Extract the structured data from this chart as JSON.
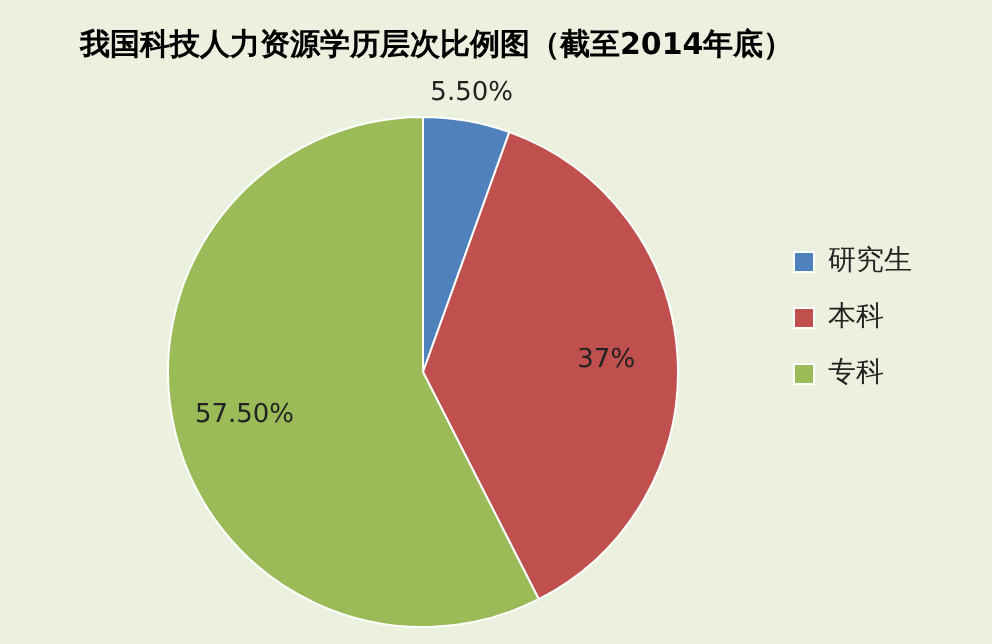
{
  "chart_data": {
    "type": "pie",
    "title": "我国科技人力资源学历层次比例图（截至2014年底）",
    "categories": [
      "研究生",
      "本科",
      "专科"
    ],
    "values": [
      5.5,
      37,
      57.5
    ],
    "colors": [
      "#4f81bd",
      "#c0504d",
      "#9bbb59"
    ],
    "value_labels": [
      "5.50%",
      "37%",
      "57.50%"
    ],
    "legend": "right"
  }
}
